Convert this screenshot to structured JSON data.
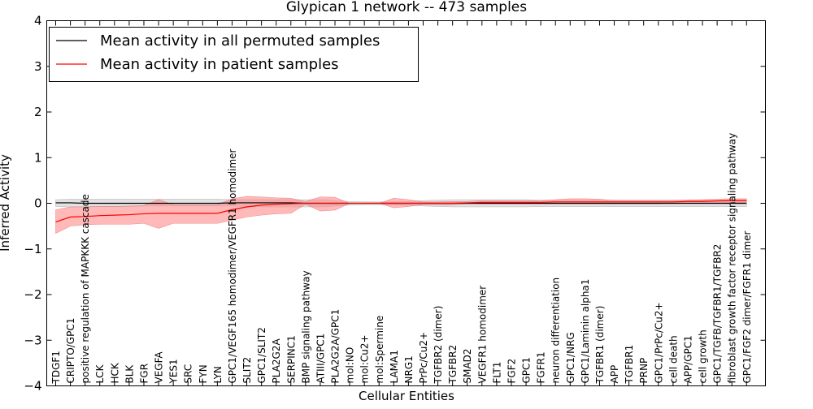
{
  "chart_data": {
    "type": "line",
    "title": "Glypican 1 network -- 473 samples",
    "xlabel": "Cellular Entities",
    "ylabel": "Inferred Activity",
    "ylim": [
      -4,
      4
    ],
    "yticks": [
      -4,
      -3,
      -2,
      -1,
      0,
      1,
      2,
      3,
      4
    ],
    "ytick_labels": [
      "−4",
      "−3",
      "−2",
      "−1",
      "0",
      "1",
      "2",
      "3",
      "4"
    ],
    "grid": false,
    "legend_position": "top-left",
    "categories": [
      "TDGF1",
      "CRIPTO/GPC1",
      "positive regulation of MAPKKK cascade",
      "LCK",
      "HCK",
      "BLK",
      "FGR",
      "VEGFA",
      "YES1",
      "SRC",
      "FYN",
      "LYN",
      "GPC1/VEGF165 homodimer/VEGFR1 homodimer",
      "SLIT2",
      "GPC1/SLIT2",
      "PLA2G2A",
      "SERPINC1",
      "BMP signaling pathway",
      "ATIII/GPC1",
      "PLA2G2A/GPC1",
      "mol:NO",
      "mol:Cu2+",
      "mol:Spermine",
      "LAMA1",
      "NRG1",
      "PrPc/Cu2+",
      "TGFBR2 (dimer)",
      "TGFBR2",
      "SMAD2",
      "VEGFR1 homodimer",
      "FLT1",
      "FGF2",
      "GPC1",
      "FGFR1",
      "neuron differentiation",
      "GPC1/NRG",
      "GPC1/Laminin alpha1",
      "TGFBR1 (dimer)",
      "APP",
      "TGFBR1",
      "PRNP",
      "GPC1/PrPc/Cu2+",
      "cell death",
      "APP/GPC1",
      "cell growth",
      "GPC1/TGFB/TGFBR1/TGFBR2",
      "fibroblast growth factor receptor signaling pathway",
      "GPC1/FGF2 dimer/FGFR1 dimer"
    ],
    "series": [
      {
        "name": "Mean activity in all permuted samples",
        "color": "#000000",
        "band_color": "#bfbfbf",
        "values": [
          0.01,
          0.01,
          0.0,
          0.0,
          0.0,
          0.0,
          0.0,
          0.0,
          0.0,
          0.0,
          0.0,
          0.0,
          0.01,
          0.01,
          0.01,
          0.01,
          0.01,
          0.0,
          0.0,
          0.0,
          0.0,
          0.0,
          0.0,
          0.0,
          0.0,
          0.0,
          0.0,
          0.0,
          0.0,
          0.0,
          0.0,
          0.0,
          0.0,
          0.0,
          0.0,
          0.0,
          0.0,
          0.0,
          0.0,
          0.0,
          0.0,
          0.0,
          0.0,
          0.0,
          0.0,
          0.0,
          0.0,
          0.0
        ],
        "lower": [
          -0.07,
          -0.08,
          -0.07,
          -0.07,
          -0.07,
          -0.07,
          -0.06,
          -0.06,
          -0.06,
          -0.06,
          -0.06,
          -0.06,
          -0.06,
          -0.07,
          -0.08,
          -0.08,
          -0.08,
          -0.08,
          -0.08,
          -0.06,
          -0.04,
          -0.03,
          -0.03,
          -0.03,
          -0.04,
          -0.06,
          -0.07,
          -0.08,
          -0.08,
          -0.08,
          -0.08,
          -0.08,
          -0.08,
          -0.07,
          -0.07,
          -0.07,
          -0.07,
          -0.07,
          -0.07,
          -0.07,
          -0.07,
          -0.07,
          -0.07,
          -0.07,
          -0.07,
          -0.07,
          -0.07,
          -0.07
        ],
        "upper": [
          0.08,
          0.09,
          0.09,
          0.09,
          0.09,
          0.09,
          0.09,
          0.09,
          0.09,
          0.09,
          0.09,
          0.09,
          0.08,
          0.08,
          0.08,
          0.08,
          0.08,
          0.08,
          0.08,
          0.06,
          0.04,
          0.03,
          0.03,
          0.03,
          0.04,
          0.06,
          0.07,
          0.08,
          0.08,
          0.08,
          0.08,
          0.08,
          0.08,
          0.07,
          0.07,
          0.07,
          0.07,
          0.07,
          0.07,
          0.07,
          0.07,
          0.07,
          0.07,
          0.07,
          0.07,
          0.07,
          0.07,
          0.07
        ]
      },
      {
        "name": "Mean activity in patient samples",
        "color": "#ff0000",
        "band_color": "#ff8080",
        "values": [
          -0.41,
          -0.3,
          -0.29,
          -0.27,
          -0.26,
          -0.25,
          -0.23,
          -0.22,
          -0.22,
          -0.22,
          -0.22,
          -0.22,
          -0.14,
          -0.08,
          -0.04,
          -0.02,
          -0.01,
          0.0,
          0.0,
          0.0,
          0.0,
          0.0,
          0.0,
          0.0,
          0.0,
          0.0,
          0.0,
          0.0,
          0.01,
          0.02,
          0.02,
          0.02,
          0.02,
          0.02,
          0.03,
          0.03,
          0.03,
          0.03,
          0.03,
          0.03,
          0.03,
          0.03,
          0.03,
          0.04,
          0.04,
          0.05,
          0.06,
          0.06
        ],
        "lower": [
          -0.66,
          -0.5,
          -0.47,
          -0.46,
          -0.46,
          -0.46,
          -0.44,
          -0.55,
          -0.44,
          -0.44,
          -0.44,
          -0.44,
          -0.37,
          -0.3,
          -0.26,
          -0.23,
          -0.22,
          -0.02,
          -0.17,
          -0.15,
          0.0,
          0.0,
          0.0,
          -0.1,
          -0.07,
          -0.03,
          -0.03,
          -0.03,
          -0.01,
          -0.01,
          -0.01,
          -0.01,
          -0.01,
          -0.01,
          -0.01,
          -0.01,
          -0.01,
          -0.01,
          -0.01,
          -0.01,
          -0.01,
          -0.01,
          0.0,
          0.0,
          0.0,
          0.0,
          0.01,
          0.02
        ],
        "upper": [
          -0.14,
          -0.08,
          -0.08,
          -0.07,
          -0.07,
          -0.06,
          -0.05,
          0.08,
          -0.03,
          -0.03,
          -0.03,
          -0.03,
          0.1,
          0.15,
          0.14,
          0.12,
          0.11,
          0.04,
          0.14,
          0.13,
          0.0,
          0.0,
          0.0,
          0.11,
          0.08,
          0.03,
          0.03,
          0.04,
          0.04,
          0.06,
          0.06,
          0.06,
          0.06,
          0.05,
          0.08,
          0.1,
          0.1,
          0.09,
          0.06,
          0.06,
          0.06,
          0.06,
          0.06,
          0.07,
          0.08,
          0.09,
          0.1,
          0.1
        ]
      }
    ]
  }
}
